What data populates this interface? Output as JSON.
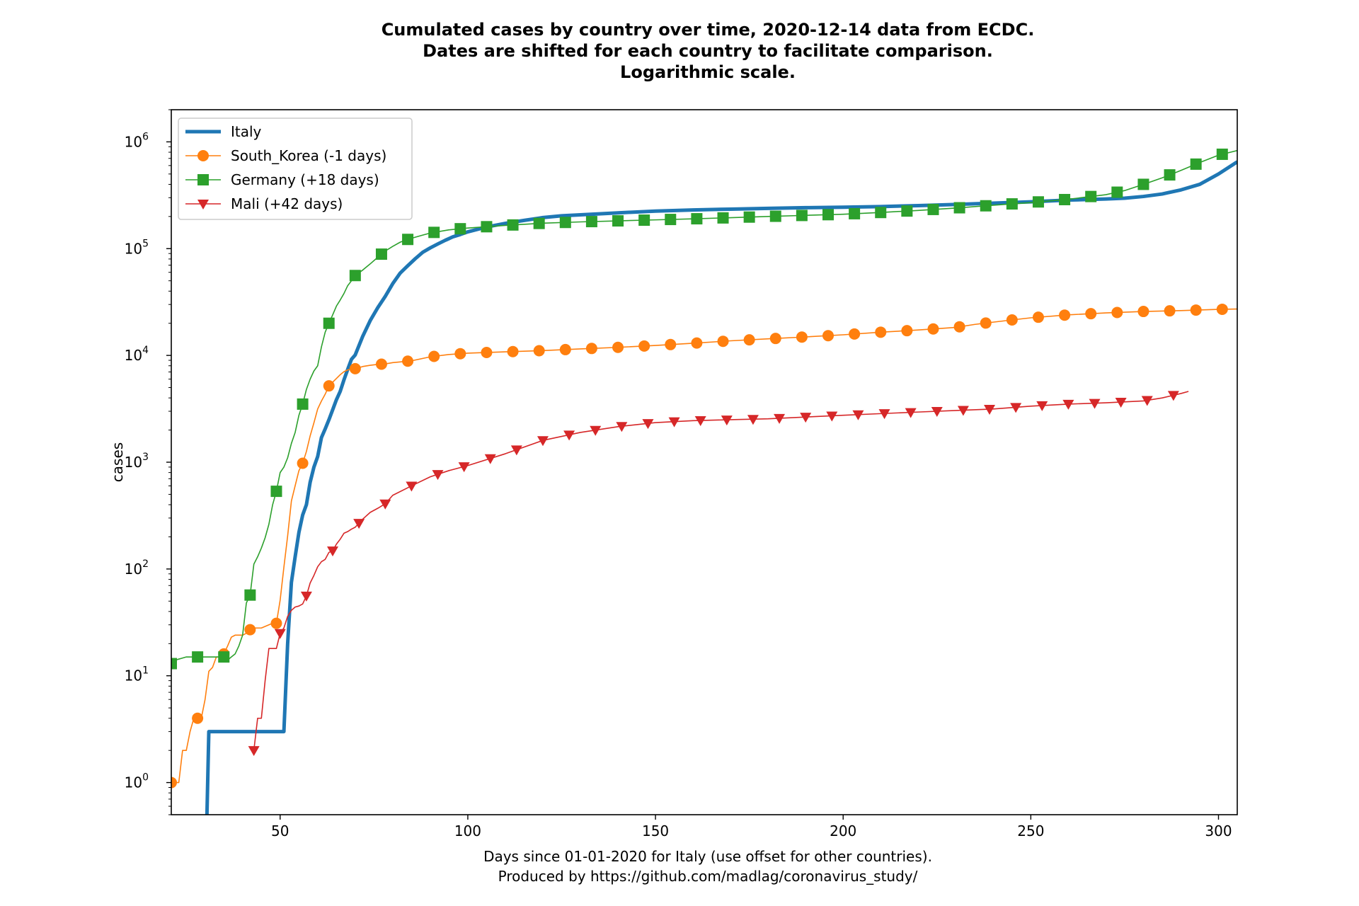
{
  "chart_data": {
    "type": "line",
    "title": [
      "Cumulated cases by country over time, 2020-12-14 data from ECDC.",
      "Dates are shifted for each country to facilitate comparison.",
      "Logarithmic scale."
    ],
    "xlabel": [
      "Days since 01-01-2020 for Italy (use offset for other countries).",
      "Produced by https://github.com/madlag/coronavirus_study/"
    ],
    "ylabel": "cases",
    "xlim": [
      21,
      305
    ],
    "ylim": [
      0.5,
      2000000
    ],
    "yscale": "log",
    "grid": false,
    "legend_position": "top-left",
    "xticks": [
      50,
      100,
      150,
      200,
      250,
      300
    ],
    "xtick_labels": [
      "50",
      "100",
      "150",
      "200",
      "250",
      "300"
    ],
    "yticks": [
      1,
      10,
      100,
      1000,
      10000,
      100000,
      1000000
    ],
    "ytick_labels": [
      {
        "base": "10",
        "exp": "0"
      },
      {
        "base": "10",
        "exp": "1"
      },
      {
        "base": "10",
        "exp": "2"
      },
      {
        "base": "10",
        "exp": "3"
      },
      {
        "base": "10",
        "exp": "4"
      },
      {
        "base": "10",
        "exp": "5"
      },
      {
        "base": "10",
        "exp": "6"
      }
    ],
    "series": [
      {
        "name": "Italy",
        "color": "#1f77b4",
        "marker": "none",
        "line_width": 5,
        "x": [
          30.5,
          31,
          35,
          40,
          45,
          50,
          51,
          52,
          53,
          54,
          55,
          56,
          57,
          58,
          59,
          60,
          61,
          62,
          63,
          64,
          65,
          66,
          67,
          68,
          69,
          70,
          72,
          74,
          76,
          78,
          80,
          82,
          84,
          86,
          88,
          90,
          92,
          94,
          96,
          98,
          100,
          105,
          110,
          115,
          120,
          125,
          130,
          140,
          150,
          160,
          170,
          180,
          190,
          200,
          210,
          220,
          230,
          240,
          250,
          260,
          270,
          275,
          280,
          285,
          290,
          295,
          300,
          305
        ],
        "y": [
          0.5,
          3,
          3,
          3,
          3,
          3,
          3,
          20,
          75,
          130,
          220,
          320,
          400,
          650,
          900,
          1130,
          1700,
          2050,
          2500,
          3100,
          3850,
          4600,
          5900,
          7400,
          9200,
          10100,
          15100,
          21200,
          27980,
          35700,
          47000,
          59100,
          69200,
          80500,
          92500,
          101700,
          110600,
          119800,
          128900,
          135600,
          143600,
          159500,
          172400,
          183900,
          195400,
          203000,
          207400,
          216300,
          224800,
          230400,
          234500,
          238200,
          241900,
          244400,
          247600,
          253000,
          259000,
          266900,
          274600,
          285000,
          292000,
          297000,
          308000,
          325000,
          355000,
          400000,
          500000,
          650000
        ]
      },
      {
        "name": "South_Korea (-1 days)",
        "color": "#ff7f0e",
        "marker": "circle",
        "line_width": 1.6,
        "x": [
          21,
          22,
          23,
          24,
          25,
          26,
          27,
          28,
          29,
          30,
          31,
          32,
          33,
          34,
          35,
          36,
          37,
          38,
          39,
          40,
          41,
          42,
          43,
          44,
          45,
          46,
          47,
          48,
          49,
          50,
          51,
          52,
          53,
          54,
          55,
          56,
          57,
          58,
          59,
          60,
          61,
          62,
          63,
          64,
          65,
          66,
          67,
          68,
          69,
          70,
          72,
          74,
          76,
          78,
          80,
          85,
          90,
          95,
          100,
          110,
          120,
          130,
          140,
          150,
          160,
          170,
          180,
          190,
          200,
          210,
          220,
          230,
          235,
          240,
          245,
          250,
          260,
          270,
          280,
          290,
          300,
          305
        ],
        "y": [
          1,
          1,
          1,
          2,
          2,
          3,
          4,
          4,
          4,
          6,
          11,
          12,
          15,
          15,
          16,
          19,
          23,
          24,
          24,
          24,
          25,
          27,
          28,
          28,
          28,
          29,
          30,
          31,
          31,
          51,
          104,
          204,
          433,
          602,
          833,
          977,
          1261,
          1766,
          2337,
          3150,
          3736,
          4335,
          5186,
          5621,
          6088,
          6593,
          7041,
          7313,
          7478,
          7513,
          7869,
          8086,
          8236,
          8320,
          8565,
          8900,
          9700,
          10200,
          10500,
          10800,
          11100,
          11500,
          11900,
          12400,
          13000,
          13700,
          14300,
          14900,
          15600,
          16500,
          17300,
          18300,
          19500,
          20500,
          21500,
          22500,
          24000,
          25000,
          25800,
          26300,
          27000,
          27200
        ]
      },
      {
        "name": "Germany (+18 days)",
        "color": "#2ca02c",
        "marker": "square",
        "line_width": 1.6,
        "x": [
          21,
          22,
          25,
          30,
          35,
          36,
          37,
          38,
          39,
          40,
          41,
          42,
          43,
          44,
          45,
          46,
          47,
          48,
          49,
          50,
          51,
          52,
          53,
          54,
          55,
          56,
          57,
          58,
          59,
          60,
          61,
          62,
          63,
          64,
          65,
          66,
          67,
          68,
          69,
          70,
          72,
          74,
          76,
          78,
          80,
          82,
          84,
          86,
          88,
          90,
          95,
          100,
          110,
          120,
          130,
          140,
          150,
          160,
          170,
          180,
          190,
          200,
          210,
          220,
          230,
          240,
          250,
          260,
          270,
          275,
          280,
          285,
          290,
          295,
          300,
          305
        ],
        "y": [
          13,
          14,
          15,
          15,
          15,
          14,
          15,
          16,
          19,
          24,
          48,
          57,
          111,
          130,
          157,
          196,
          262,
          400,
          534,
          800,
          900,
          1100,
          1500,
          1900,
          2750,
          3500,
          4800,
          6000,
          7150,
          8000,
          12000,
          16500,
          20000,
          24000,
          29000,
          33000,
          38000,
          45000,
          50000,
          56000,
          63000,
          72000,
          83000,
          95000,
          105000,
          115000,
          122000,
          128000,
          134000,
          140000,
          150000,
          156000,
          165000,
          173000,
          178000,
          182000,
          186000,
          190000,
          195000,
          200000,
          205000,
          210000,
          218000,
          228000,
          240000,
          255000,
          270000,
          290000,
          320000,
          350000,
          400000,
          460000,
          540000,
          640000,
          750000,
          830000
        ]
      },
      {
        "name": "Mali (+42 days)",
        "color": "#d62728",
        "marker": "triangle-down",
        "line_width": 1.6,
        "x": [
          43,
          44,
          45,
          46,
          47,
          48,
          49,
          50,
          51,
          52,
          53,
          54,
          55,
          56,
          57,
          58,
          59,
          60,
          61,
          62,
          63,
          64,
          65,
          66,
          67,
          68,
          69,
          70,
          72,
          74,
          76,
          78,
          80,
          85,
          90,
          95,
          100,
          110,
          120,
          130,
          140,
          150,
          160,
          170,
          180,
          190,
          200,
          210,
          220,
          230,
          240,
          250,
          260,
          270,
          280,
          285,
          290,
          292
        ],
        "y": [
          2,
          4,
          4,
          9,
          18,
          18,
          18,
          25,
          28,
          36,
          41,
          44,
          45,
          47,
          56,
          74,
          87,
          105,
          117,
          123,
          143,
          148,
          171,
          190,
          216,
          224,
          236,
          246,
          293,
          339,
          370,
          408,
          490,
          600,
          730,
          835,
          930,
          1200,
          1600,
          1900,
          2150,
          2350,
          2450,
          2500,
          2550,
          2650,
          2750,
          2850,
          2950,
          3050,
          3150,
          3350,
          3500,
          3600,
          3750,
          4000,
          4400,
          4600
        ]
      }
    ]
  }
}
